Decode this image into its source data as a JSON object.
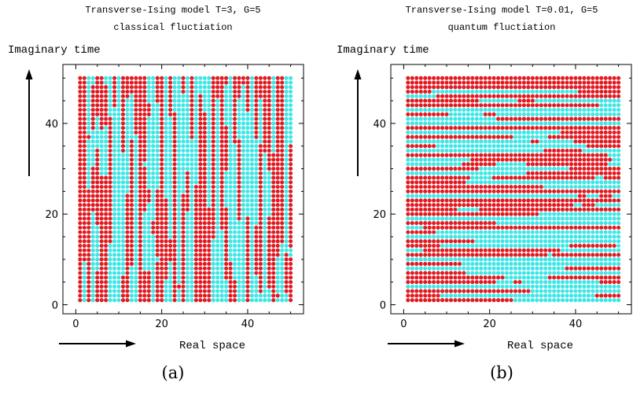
{
  "chart_data": [
    {
      "type": "scatter",
      "title": "Transverse-Ising model T=3, G=5",
      "subtitle": "classical fluctiation",
      "ylabel": "Imaginary time",
      "xlabel": "Real space",
      "panel_label": "(a)",
      "xlim": [
        -3,
        53
      ],
      "ylim": [
        -2,
        53
      ],
      "xticks": [
        "0",
        "20",
        "40"
      ],
      "yticks": [
        "0",
        "20",
        "40"
      ],
      "grid": "1..50 x 1..50 sites",
      "colors": {
        "up": "#e01b22",
        "down": "#3fe6e6"
      },
      "down_columns": [
        2,
        4,
        8,
        9,
        10,
        12,
        13,
        14,
        18,
        21,
        22,
        24,
        26,
        27,
        32,
        33,
        34,
        35,
        38,
        39,
        41,
        42,
        43,
        44,
        45,
        47,
        48,
        49
      ],
      "seed": 7
    },
    {
      "type": "scatter",
      "title": "Transverse-Ising model T=0.01, G=5",
      "subtitle": "quantum fluctiation",
      "ylabel": "Imaginary time",
      "xlabel": "Real space",
      "panel_label": "(b)",
      "xlim": [
        -3,
        53
      ],
      "ylim": [
        -2,
        53
      ],
      "xticks": [
        "0",
        "20",
        "40"
      ],
      "yticks": [
        "0",
        "20",
        "40"
      ],
      "grid": "1..50 x 1..50 sites",
      "colors": {
        "up": "#e01b22",
        "down": "#3fe6e6"
      },
      "down_rows": [
        4,
        8,
        10,
        12,
        15,
        17,
        19,
        24,
        29,
        31,
        32,
        34,
        36,
        38,
        40,
        41,
        43,
        46
      ],
      "seed": 13
    }
  ]
}
